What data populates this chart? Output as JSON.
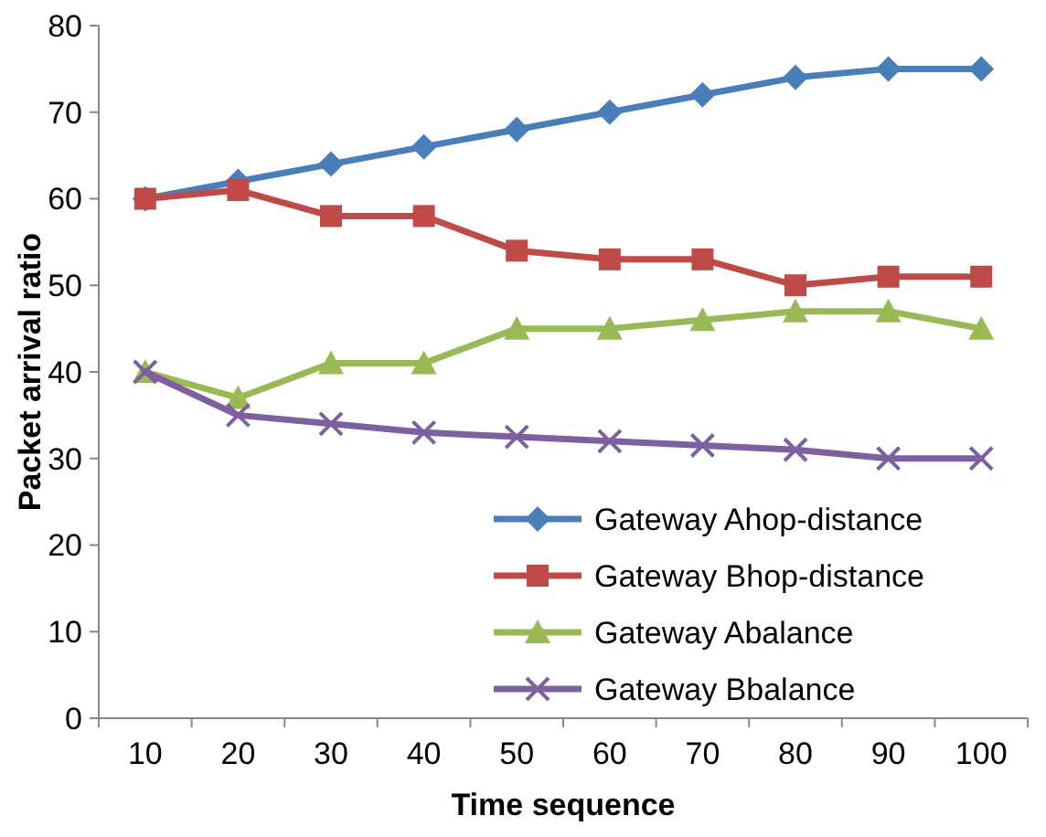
{
  "chart_data": {
    "type": "line",
    "xlabel": "Time sequence",
    "ylabel": "Packet arrival ratio",
    "categories": [
      "10",
      "20",
      "30",
      "40",
      "50",
      "60",
      "70",
      "80",
      "90",
      "100"
    ],
    "ylim": [
      0,
      80
    ],
    "yticks": [
      0,
      10,
      20,
      30,
      40,
      50,
      60,
      70,
      80
    ],
    "grid": false,
    "legend": "bottom right",
    "line_style": "solid",
    "series": [
      {
        "name": "Gateway Ahop-distance",
        "color": "#4a7ebb",
        "marker": "diamond",
        "values": [
          60,
          62,
          64,
          66,
          68,
          70,
          72,
          74,
          75,
          75
        ]
      },
      {
        "name": "Gateway Bhop-distance",
        "color": "#be4b48",
        "marker": "square",
        "values": [
          60,
          61,
          58,
          58,
          54,
          53,
          53,
          50,
          51,
          51
        ]
      },
      {
        "name": "Gateway Abalance",
        "color": "#98b954",
        "marker": "triangle",
        "values": [
          40,
          37,
          41,
          41,
          45,
          45,
          46,
          47,
          47,
          45
        ]
      },
      {
        "name": "Gateway Bbalance",
        "color": "#7d60a0",
        "marker": "cross",
        "values": [
          40,
          35,
          34,
          33,
          32.5,
          32,
          31.5,
          31,
          30,
          30
        ]
      }
    ]
  }
}
